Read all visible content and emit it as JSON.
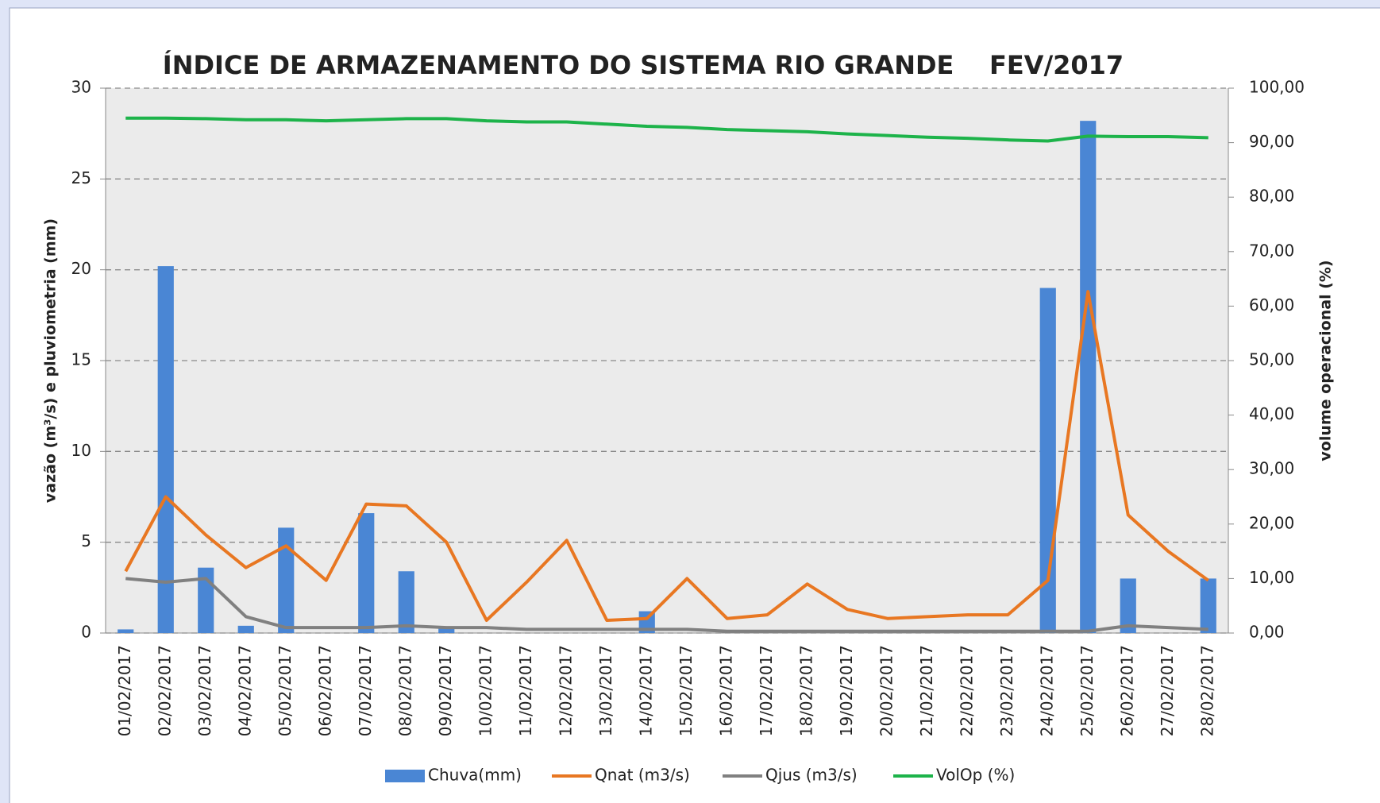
{
  "chart_data": {
    "type": "bar",
    "title": "ÍNDICE DE ARMAZENAMENTO DO SISTEMA RIO GRANDE    FEV/2017",
    "y_label": "vazão (m³/s) e pluviometria (mm)",
    "y2_label": "volume operacional (%)",
    "categories": [
      "01/02/2017",
      "02/02/2017",
      "03/02/2017",
      "04/02/2017",
      "05/02/2017",
      "06/02/2017",
      "07/02/2017",
      "08/02/2017",
      "09/02/2017",
      "10/02/2017",
      "11/02/2017",
      "12/02/2017",
      "13/02/2017",
      "14/02/2017",
      "15/02/2017",
      "16/02/2017",
      "17/02/2017",
      "18/02/2017",
      "19/02/2017",
      "20/02/2017",
      "21/02/2017",
      "22/02/2017",
      "23/02/2017",
      "24/02/2017",
      "25/02/2017",
      "26/02/2017",
      "27/02/2017",
      "28/02/2017"
    ],
    "series": [
      {
        "name": "Chuva(mm)",
        "type": "bar",
        "color": "#4a86d4",
        "values": [
          0.2,
          20.2,
          3.6,
          0.4,
          5.8,
          0,
          6.6,
          3.4,
          0.3,
          0,
          0,
          0,
          0,
          1.2,
          0,
          0,
          0,
          0,
          0,
          0,
          0,
          0,
          0,
          19.0,
          28.2,
          3.0,
          0,
          3.0
        ]
      },
      {
        "name": "Qnat (m3/s)",
        "type": "line",
        "color": "#e87722",
        "values": [
          3.4,
          7.5,
          5.4,
          3.6,
          4.8,
          2.9,
          7.1,
          7.0,
          5.0,
          0.7,
          2.8,
          5.1,
          0.7,
          0.8,
          3.0,
          0.8,
          1.0,
          2.7,
          1.3,
          0.8,
          0.9,
          1.0,
          1.0,
          2.9,
          18.8,
          6.5,
          4.5,
          2.9
        ]
      },
      {
        "name": "Qjus (m3/s)",
        "type": "line",
        "color": "#808080",
        "values": [
          3.0,
          2.8,
          3.0,
          0.9,
          0.3,
          0.3,
          0.3,
          0.4,
          0.3,
          0.3,
          0.2,
          0.2,
          0.2,
          0.2,
          0.2,
          0.1,
          0.1,
          0.1,
          0.1,
          0.1,
          0.1,
          0.1,
          0.1,
          0.1,
          0.1,
          0.4,
          0.3,
          0.2
        ]
      },
      {
        "name": "VolOp (%)",
        "type": "line",
        "axis": "y2",
        "color": "#1db34a",
        "values": [
          94.5,
          94.5,
          94.4,
          94.2,
          94.2,
          94.0,
          94.2,
          94.4,
          94.4,
          94.0,
          93.8,
          93.8,
          93.4,
          93.0,
          92.8,
          92.4,
          92.2,
          92.0,
          91.6,
          91.3,
          91.0,
          90.8,
          90.5,
          90.3,
          91.2,
          91.1,
          91.1,
          90.9
        ]
      }
    ],
    "ylim": [
      0,
      30
    ],
    "yticks": [
      0,
      5,
      10,
      15,
      20,
      25,
      30
    ],
    "y2lim": [
      0,
      100
    ],
    "y2ticks": [
      {
        "value": 0,
        "label": "0,00"
      },
      {
        "value": 10,
        "label": "10,00"
      },
      {
        "value": 20,
        "label": "20,00"
      },
      {
        "value": 30,
        "label": "30,00"
      },
      {
        "value": 40,
        "label": "40,00"
      },
      {
        "value": 50,
        "label": "50,00"
      },
      {
        "value": 60,
        "label": "60,00"
      },
      {
        "value": 70,
        "label": "70,00"
      },
      {
        "value": 80,
        "label": "80,00"
      },
      {
        "value": 90,
        "label": "90,00"
      },
      {
        "value": 100,
        "label": "100,00"
      }
    ],
    "grid": true,
    "legend": "bottom"
  }
}
